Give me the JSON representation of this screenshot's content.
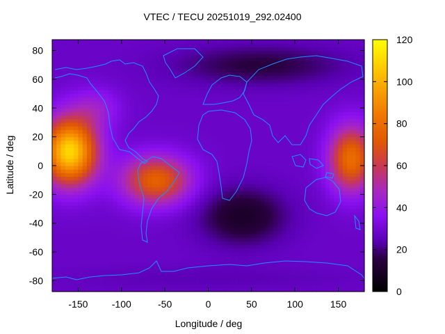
{
  "chart_data": {
    "type": "heatmap",
    "title": "VTEC / TECU 20251019_292.02400",
    "xlabel": "Longitude / deg",
    "ylabel": "Latitude / deg",
    "xlim": [
      -180,
      180
    ],
    "ylim": [
      -87.5,
      87.5
    ],
    "x_ticks": [
      -150,
      -100,
      -50,
      0,
      50,
      100,
      150
    ],
    "y_ticks": [
      -80,
      -60,
      -40,
      -20,
      0,
      20,
      40,
      60,
      80
    ],
    "colorbar": {
      "range": [
        0,
        120
      ],
      "ticks": [
        0,
        20,
        40,
        60,
        80,
        100,
        120
      ],
      "colormap": "gnuplot-pm3d"
    },
    "coastline_color": "#1e90ff",
    "features": [
      {
        "name": "equatorial-anomaly-pacific",
        "lon": -160,
        "lat": 10,
        "peak_tecu": 110
      },
      {
        "name": "equatorial-anomaly-south-america",
        "lon": -60,
        "lat": -10,
        "peak_tecu": 75
      },
      {
        "name": "equatorial-anomaly-west-pacific",
        "lon": 165,
        "lat": 5,
        "peak_tecu": 80
      },
      {
        "name": "north-america-mid-lat",
        "lon": -130,
        "lat": 40,
        "peak_tecu": 55
      },
      {
        "name": "night-side-minimum-africa",
        "lon": 40,
        "lat": -35,
        "peak_tecu": 10
      },
      {
        "name": "high-latitude-north",
        "lon": 60,
        "lat": 70,
        "peak_tecu": 15
      },
      {
        "name": "high-latitude-south",
        "lon": 0,
        "lat": -78,
        "peak_tecu": 22
      }
    ]
  }
}
